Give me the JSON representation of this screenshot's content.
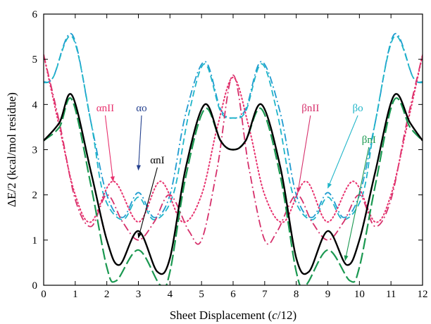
{
  "chart_data": {
    "type": "line",
    "xlabel": "Sheet Displacement (c/12)",
    "xlabel_prefix": "Sheet Displacement (",
    "xlabel_var": "c",
    "xlabel_suffix": "/12)",
    "ylabel": "ΔE/2 (kcal/mol residue)",
    "xlim": [
      0,
      12
    ],
    "ylim": [
      0,
      6
    ],
    "xticks": [
      0,
      1,
      2,
      3,
      4,
      5,
      6,
      7,
      8,
      9,
      10,
      11,
      12
    ],
    "yticks": [
      0,
      1,
      2,
      3,
      4,
      5,
      6
    ],
    "grid": false,
    "legend": "none",
    "series": [
      {
        "name": "αnI",
        "color": "#000000",
        "dash": "solid",
        "x": [
          0,
          0.5,
          0.9,
          1.5,
          2.0,
          2.4,
          3.0,
          3.6,
          4.0,
          4.5,
          5.1,
          5.6,
          6.0,
          6.4,
          6.9,
          7.5,
          8.0,
          8.4,
          9.0,
          9.6,
          10.0,
          10.5,
          11.1,
          11.6,
          12
        ],
        "y": [
          3.2,
          3.6,
          4.2,
          2.5,
          1.0,
          0.45,
          1.2,
          0.3,
          0.6,
          2.6,
          4.0,
          3.2,
          3.0,
          3.2,
          4.0,
          2.6,
          0.6,
          0.3,
          1.2,
          0.45,
          1.0,
          2.5,
          4.2,
          3.6,
          3.2
        ]
      },
      {
        "name": "βnI",
        "color": "#1a9850",
        "dash": "long-dash",
        "x": [
          0,
          0.5,
          0.9,
          1.5,
          2.0,
          2.3,
          3.0,
          3.7,
          4.0,
          4.5,
          5.1,
          5.6,
          6.0,
          6.4,
          6.9,
          7.5,
          8.0,
          8.3,
          9.0,
          9.7,
          10.0,
          10.5,
          11.1,
          11.6,
          12
        ],
        "y": [
          3.2,
          3.5,
          4.1,
          2.2,
          0.4,
          0.1,
          0.78,
          0.0,
          0.3,
          2.4,
          3.9,
          3.2,
          3.0,
          3.2,
          3.9,
          2.4,
          0.3,
          0.0,
          0.78,
          0.1,
          0.4,
          2.2,
          4.1,
          3.5,
          3.2
        ]
      },
      {
        "name": "αo",
        "color": "#1f9bd0",
        "dash": "dash-dot",
        "x": [
          0,
          0.3,
          0.9,
          1.5,
          2.0,
          2.5,
          3.0,
          3.5,
          4.0,
          4.5,
          5.1,
          5.6,
          6.0,
          6.4,
          6.9,
          7.5,
          8.0,
          8.5,
          9.0,
          9.5,
          10.0,
          10.5,
          11.1,
          11.7,
          12
        ],
        "y": [
          4.5,
          4.6,
          5.55,
          3.6,
          2.0,
          1.5,
          2.05,
          1.5,
          2.0,
          3.8,
          4.95,
          3.9,
          3.7,
          3.9,
          4.95,
          3.8,
          2.0,
          1.5,
          2.05,
          1.5,
          2.0,
          3.6,
          5.55,
          4.6,
          4.5
        ]
      },
      {
        "name": "βo",
        "color": "#1fb5c8",
        "dash": "dash",
        "x": [
          0,
          0.3,
          0.9,
          1.5,
          1.9,
          2.5,
          3.0,
          3.5,
          4.1,
          4.6,
          5.1,
          5.6,
          6.0,
          6.4,
          6.9,
          7.4,
          7.9,
          8.5,
          9.0,
          9.5,
          10.1,
          10.5,
          11.1,
          11.7,
          12
        ],
        "y": [
          4.48,
          4.6,
          5.5,
          3.6,
          2.0,
          1.45,
          1.95,
          1.45,
          2.0,
          3.8,
          4.9,
          3.85,
          3.7,
          3.85,
          4.9,
          3.8,
          2.0,
          1.45,
          1.95,
          1.45,
          2.0,
          3.6,
          5.5,
          4.6,
          4.48
        ]
      },
      {
        "name": "αnII",
        "color": "#e8326e",
        "dash": "dotted",
        "x": [
          0,
          0.5,
          1.0,
          1.5,
          2.2,
          3.0,
          3.7,
          4.4,
          5.0,
          5.5,
          6.0,
          6.5,
          7.0,
          7.6,
          8.3,
          9.0,
          9.8,
          10.5,
          11.0,
          11.5,
          12
        ],
        "y": [
          5.1,
          3.5,
          2.0,
          1.4,
          2.3,
          1.4,
          2.3,
          1.4,
          2.0,
          3.5,
          4.6,
          3.5,
          2.0,
          1.4,
          2.3,
          1.4,
          2.3,
          1.4,
          2.0,
          3.5,
          5.1
        ]
      },
      {
        "name": "βnII",
        "color": "#d6306b",
        "dash": "dash-dot",
        "x": [
          0,
          0.5,
          1.0,
          1.5,
          2.0,
          2.5,
          3.0,
          3.5,
          4.0,
          4.6,
          5.0,
          5.5,
          6.0,
          6.5,
          7.0,
          7.4,
          8.0,
          8.5,
          9.0,
          9.5,
          10.0,
          10.5,
          11.0,
          11.5,
          12
        ],
        "y": [
          5.1,
          3.6,
          1.9,
          1.3,
          2.0,
          1.4,
          1.0,
          1.4,
          2.0,
          1.2,
          1.0,
          2.6,
          4.65,
          2.6,
          1.0,
          1.2,
          2.0,
          1.4,
          1.0,
          1.4,
          2.0,
          1.3,
          1.9,
          3.6,
          5.1
        ]
      }
    ],
    "annotations": [
      {
        "text": "αnII",
        "color": "#e8326e",
        "label_at": [
          1.95,
          3.85
        ],
        "arrow_to": [
          2.2,
          2.3
        ]
      },
      {
        "text": "αo",
        "color": "#24408e",
        "label_at": [
          3.1,
          3.85
        ],
        "arrow_to": [
          3.0,
          2.55
        ]
      },
      {
        "text": "αnI",
        "color": "#000000",
        "label_at": [
          3.6,
          2.7
        ],
        "arrow_to": [
          3.0,
          1.05
        ]
      },
      {
        "text": "βnII",
        "color": "#d6306b",
        "label_at": [
          8.45,
          3.85
        ],
        "arrow_to": [
          8.05,
          2.05
        ]
      },
      {
        "text": "βo",
        "color": "#1fb5c8",
        "label_at": [
          9.95,
          3.85
        ],
        "arrow_to": [
          9.0,
          2.15
        ]
      },
      {
        "text": "βnI",
        "color": "#1a9850",
        "label_at": [
          10.3,
          3.15
        ],
        "arrow_to": [
          9.55,
          0.55
        ]
      }
    ]
  }
}
